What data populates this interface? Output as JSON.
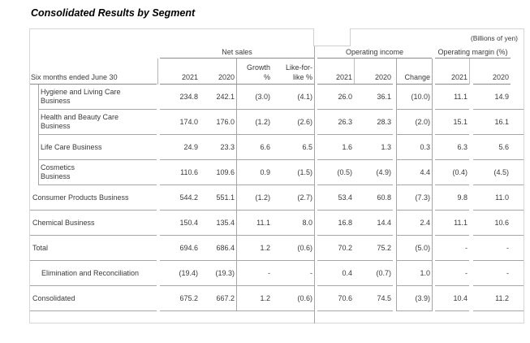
{
  "title": "Consolidated Results by Segment",
  "unit_note": "(Billions of yen)",
  "header": {
    "period_label": "Six months ended June 30",
    "group_net_sales": "Net sales",
    "group_operating_income": "Operating income",
    "group_operating_margin": "Operating margin (%)",
    "col_sales_2021": "2021",
    "col_sales_2020": "2020",
    "col_growth_l1": "Growth",
    "col_growth_l2": "%",
    "col_like_l1": "Like-for-",
    "col_like_l2": "like %",
    "col_op_2021": "2021",
    "col_op_2020": "2020",
    "col_change": "Change",
    "col_margin_2021": "2021",
    "col_margin_2020": "2020"
  },
  "rows": [
    {
      "label1": "Hygiene and Living Care",
      "label2": "Business",
      "indent": true,
      "s2021": "234.8",
      "s2020": "242.1",
      "growth": "(3.0)",
      "like": "(4.1)",
      "o2021": "26.0",
      "o2020": "36.1",
      "change": "(10.0)",
      "m2021": "11.1",
      "m2020": "14.9"
    },
    {
      "label1": "Health and Beauty Care",
      "label2": "Business",
      "indent": true,
      "s2021": "174.0",
      "s2020": "176.0",
      "growth": "(1.2)",
      "like": "(2.6)",
      "o2021": "26.3",
      "o2020": "28.3",
      "change": "(2.0)",
      "m2021": "15.1",
      "m2020": "16.1"
    },
    {
      "label1": "Life Care Business",
      "indent": true,
      "s2021": "24.9",
      "s2020": "23.3",
      "growth": "6.6",
      "like": "6.5",
      "o2021": "1.6",
      "o2020": "1.3",
      "change": "0.3",
      "m2021": "6.3",
      "m2020": "5.6"
    },
    {
      "label1": "Cosmetics",
      "label2": "Business",
      "indent": true,
      "s2021": "110.6",
      "s2020": "109.6",
      "growth": "0.9",
      "like": "(1.5)",
      "o2021": "(0.5)",
      "o2020": "(4.9)",
      "change": "4.4",
      "m2021": "(0.4)",
      "m2020": "(4.5)"
    },
    {
      "label1": "Consumer Products Business",
      "s2021": "544.2",
      "s2020": "551.1",
      "growth": "(1.2)",
      "like": "(2.7)",
      "o2021": "53.4",
      "o2020": "60.8",
      "change": "(7.3)",
      "m2021": "9.8",
      "m2020": "11.0"
    },
    {
      "label1": "Chemical Business",
      "s2021": "150.4",
      "s2020": "135.4",
      "growth": "11.1",
      "like": "8.0",
      "o2021": "16.8",
      "o2020": "14.4",
      "change": "2.4",
      "m2021": "11.1",
      "m2020": "10.6"
    },
    {
      "label1": "Total",
      "s2021": "694.6",
      "s2020": "686.4",
      "growth": "1.2",
      "like": "(0.6)",
      "o2021": "70.2",
      "o2020": "75.2",
      "change": "(5.0)",
      "m2021": "-",
      "m2020": "-"
    },
    {
      "label1": "Elimination and Reconciliation",
      "pad": true,
      "s2021": "(19.4)",
      "s2020": "(19.3)",
      "growth": "-",
      "like": "-",
      "o2021": "0.4",
      "o2020": "(0.7)",
      "change": "1.0",
      "m2021": "-",
      "m2020": "-"
    },
    {
      "label1": "Consolidated",
      "s2021": "675.2",
      "s2020": "667.2",
      "growth": "1.2",
      "like": "(0.6)",
      "o2021": "70.6",
      "o2020": "74.5",
      "change": "(3.9)",
      "m2021": "10.4",
      "m2020": "11.2"
    }
  ]
}
